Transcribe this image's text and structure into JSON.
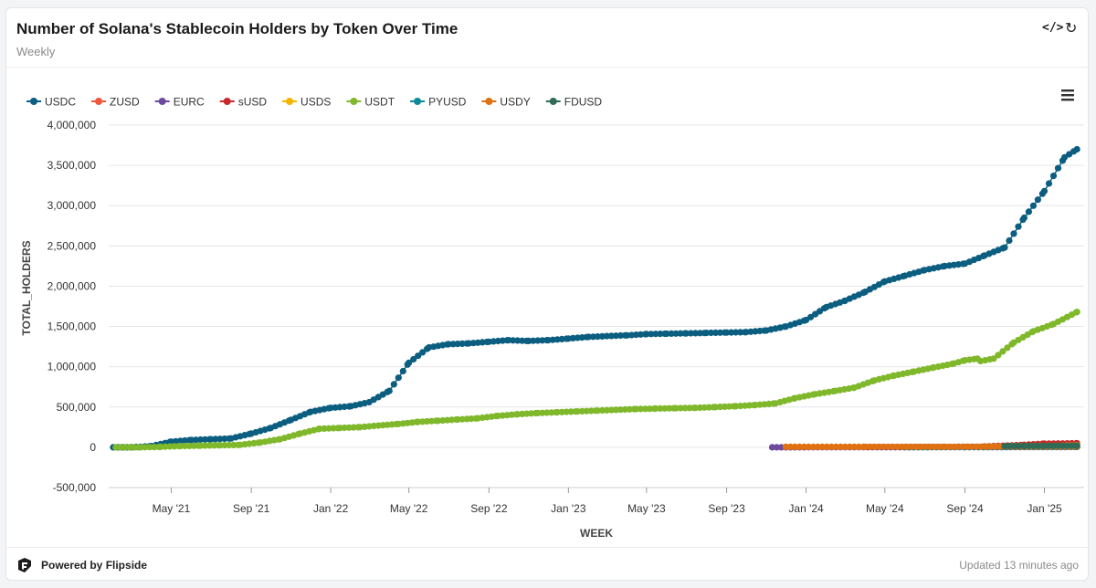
{
  "header": {
    "title": "Number of Solana's Stablecoin Holders by Token Over Time",
    "subtitle": "Weekly"
  },
  "footer": {
    "powered_by": "Powered by Flipside",
    "updated": "Updated 13 minutes ago"
  },
  "icons": {
    "code": "code-icon",
    "refresh": "refresh-icon",
    "menu": "hamburger-menu-icon",
    "logo": "flipside-logo"
  },
  "chart_data": {
    "type": "scatter",
    "xlabel": "WEEK",
    "ylabel": "TOTAL_HOLDERS",
    "ylim": [
      -500000,
      4000000
    ],
    "yticks": [
      -500000,
      0,
      500000,
      1000000,
      1500000,
      2000000,
      2500000,
      3000000,
      3500000,
      4000000
    ],
    "ytick_labels": [
      "-500,000",
      "0",
      "500,000",
      "1,000,000",
      "1,500,000",
      "2,000,000",
      "2,500,000",
      "3,000,000",
      "3,500,000",
      "4,000,000"
    ],
    "xlim": [
      "2021-01-25",
      "2025-03-03"
    ],
    "xticks": [
      "2021-05-01",
      "2021-09-01",
      "2022-01-01",
      "2022-05-01",
      "2022-09-01",
      "2023-01-01",
      "2023-05-01",
      "2023-09-01",
      "2024-01-01",
      "2024-05-01",
      "2024-09-01",
      "2025-01-01"
    ],
    "xtick_labels": [
      "May '21",
      "Sep '21",
      "Jan '22",
      "May '22",
      "Sep '22",
      "Jan '23",
      "May '23",
      "Sep '23",
      "Jan '24",
      "May '24",
      "Sep '24",
      "Jan '25"
    ],
    "grid": true,
    "legend_position": "top-left",
    "series": [
      {
        "name": "USDC",
        "color": "#0b5e80",
        "points": [
          [
            "2021-02-01",
            0
          ],
          [
            "2021-03-01",
            0
          ],
          [
            "2021-04-01",
            15000
          ],
          [
            "2021-05-01",
            70000
          ],
          [
            "2021-06-01",
            90000
          ],
          [
            "2021-07-01",
            100000
          ],
          [
            "2021-08-01",
            110000
          ],
          [
            "2021-09-01",
            170000
          ],
          [
            "2021-10-01",
            240000
          ],
          [
            "2021-11-01",
            340000
          ],
          [
            "2021-12-01",
            440000
          ],
          [
            "2022-01-01",
            490000
          ],
          [
            "2022-02-01",
            510000
          ],
          [
            "2022-03-01",
            560000
          ],
          [
            "2022-04-01",
            700000
          ],
          [
            "2022-05-01",
            1050000
          ],
          [
            "2022-06-01",
            1240000
          ],
          [
            "2022-07-01",
            1280000
          ],
          [
            "2022-08-01",
            1290000
          ],
          [
            "2022-09-01",
            1310000
          ],
          [
            "2022-10-01",
            1330000
          ],
          [
            "2022-11-01",
            1320000
          ],
          [
            "2022-12-01",
            1330000
          ],
          [
            "2023-01-01",
            1350000
          ],
          [
            "2023-02-01",
            1370000
          ],
          [
            "2023-03-01",
            1380000
          ],
          [
            "2023-04-01",
            1390000
          ],
          [
            "2023-05-01",
            1405000
          ],
          [
            "2023-06-01",
            1410000
          ],
          [
            "2023-07-01",
            1415000
          ],
          [
            "2023-08-01",
            1420000
          ],
          [
            "2023-09-01",
            1425000
          ],
          [
            "2023-10-01",
            1430000
          ],
          [
            "2023-11-01",
            1450000
          ],
          [
            "2023-12-01",
            1500000
          ],
          [
            "2024-01-01",
            1580000
          ],
          [
            "2024-02-01",
            1740000
          ],
          [
            "2024-03-01",
            1820000
          ],
          [
            "2024-04-01",
            1930000
          ],
          [
            "2024-05-01",
            2060000
          ],
          [
            "2024-06-01",
            2130000
          ],
          [
            "2024-07-01",
            2200000
          ],
          [
            "2024-08-01",
            2250000
          ],
          [
            "2024-09-01",
            2280000
          ],
          [
            "2024-10-01",
            2380000
          ],
          [
            "2024-11-01",
            2480000
          ],
          [
            "2024-12-01",
            2850000
          ],
          [
            "2025-01-01",
            3180000
          ],
          [
            "2025-02-01",
            3600000
          ],
          [
            "2025-02-20",
            3700000
          ]
        ]
      },
      {
        "name": "ZUSD",
        "color": "#f0563a",
        "points": [
          [
            "2024-10-20",
            5000
          ],
          [
            "2024-12-01",
            10000
          ],
          [
            "2025-01-01",
            15000
          ],
          [
            "2025-02-20",
            20000
          ]
        ]
      },
      {
        "name": "EURC",
        "color": "#6d4a9c",
        "points": [
          [
            "2023-11-10",
            0
          ],
          [
            "2024-03-01",
            1000
          ],
          [
            "2024-09-01",
            2000
          ],
          [
            "2025-02-20",
            4000
          ]
        ]
      },
      {
        "name": "sUSD",
        "color": "#c8282a",
        "points": [
          [
            "2024-10-01",
            10000
          ],
          [
            "2024-12-01",
            30000
          ],
          [
            "2025-01-01",
            45000
          ],
          [
            "2025-02-20",
            50000
          ]
        ]
      },
      {
        "name": "USDS",
        "color": "#f5b400",
        "points": [
          [
            "2024-10-01",
            5000
          ],
          [
            "2025-01-01",
            15000
          ],
          [
            "2025-02-20",
            25000
          ]
        ]
      },
      {
        "name": "USDT",
        "color": "#7fb82a",
        "points": [
          [
            "2021-02-05",
            0
          ],
          [
            "2021-03-15",
            0
          ],
          [
            "2021-04-15",
            5000
          ],
          [
            "2021-05-15",
            15000
          ],
          [
            "2021-06-15",
            20000
          ],
          [
            "2021-07-15",
            25000
          ],
          [
            "2021-08-15",
            30000
          ],
          [
            "2021-09-15",
            60000
          ],
          [
            "2021-10-15",
            100000
          ],
          [
            "2021-11-15",
            170000
          ],
          [
            "2021-12-15",
            230000
          ],
          [
            "2022-01-15",
            240000
          ],
          [
            "2022-02-15",
            250000
          ],
          [
            "2022-03-15",
            270000
          ],
          [
            "2022-04-15",
            290000
          ],
          [
            "2022-05-15",
            315000
          ],
          [
            "2022-06-15",
            330000
          ],
          [
            "2022-07-15",
            345000
          ],
          [
            "2022-08-15",
            360000
          ],
          [
            "2022-09-15",
            390000
          ],
          [
            "2022-10-15",
            410000
          ],
          [
            "2022-11-15",
            425000
          ],
          [
            "2022-12-15",
            435000
          ],
          [
            "2023-01-15",
            445000
          ],
          [
            "2023-02-15",
            455000
          ],
          [
            "2023-03-15",
            465000
          ],
          [
            "2023-04-15",
            475000
          ],
          [
            "2023-05-15",
            480000
          ],
          [
            "2023-06-15",
            485000
          ],
          [
            "2023-07-15",
            490000
          ],
          [
            "2023-08-15",
            500000
          ],
          [
            "2023-09-15",
            510000
          ],
          [
            "2023-10-15",
            525000
          ],
          [
            "2023-11-15",
            545000
          ],
          [
            "2023-12-15",
            610000
          ],
          [
            "2024-01-15",
            660000
          ],
          [
            "2024-02-15",
            700000
          ],
          [
            "2024-03-15",
            740000
          ],
          [
            "2024-04-15",
            830000
          ],
          [
            "2024-05-15",
            890000
          ],
          [
            "2024-06-15",
            940000
          ],
          [
            "2024-07-15",
            990000
          ],
          [
            "2024-08-15",
            1040000
          ],
          [
            "2024-09-01",
            1080000
          ],
          [
            "2024-09-20",
            1100000
          ],
          [
            "2024-09-25",
            1070000
          ],
          [
            "2024-10-15",
            1100000
          ],
          [
            "2024-11-15",
            1300000
          ],
          [
            "2024-12-15",
            1440000
          ],
          [
            "2025-01-15",
            1530000
          ],
          [
            "2025-02-20",
            1680000
          ]
        ]
      },
      {
        "name": "PYUSD",
        "color": "#0e8a9a",
        "points": [
          [
            "2024-06-01",
            1000
          ],
          [
            "2024-10-01",
            3000
          ],
          [
            "2025-02-20",
            6000
          ]
        ]
      },
      {
        "name": "USDY",
        "color": "#e07010",
        "points": [
          [
            "2023-12-01",
            5000
          ],
          [
            "2024-04-01",
            6000
          ],
          [
            "2024-08-01",
            7000
          ],
          [
            "2024-12-01",
            9000
          ],
          [
            "2025-02-20",
            10000
          ]
        ]
      },
      {
        "name": "FDUSD",
        "color": "#2f6b55",
        "points": [
          [
            "2024-11-01",
            15000
          ],
          [
            "2024-12-01",
            16000
          ],
          [
            "2025-01-01",
            18000
          ],
          [
            "2025-02-20",
            20000
          ]
        ]
      }
    ]
  }
}
